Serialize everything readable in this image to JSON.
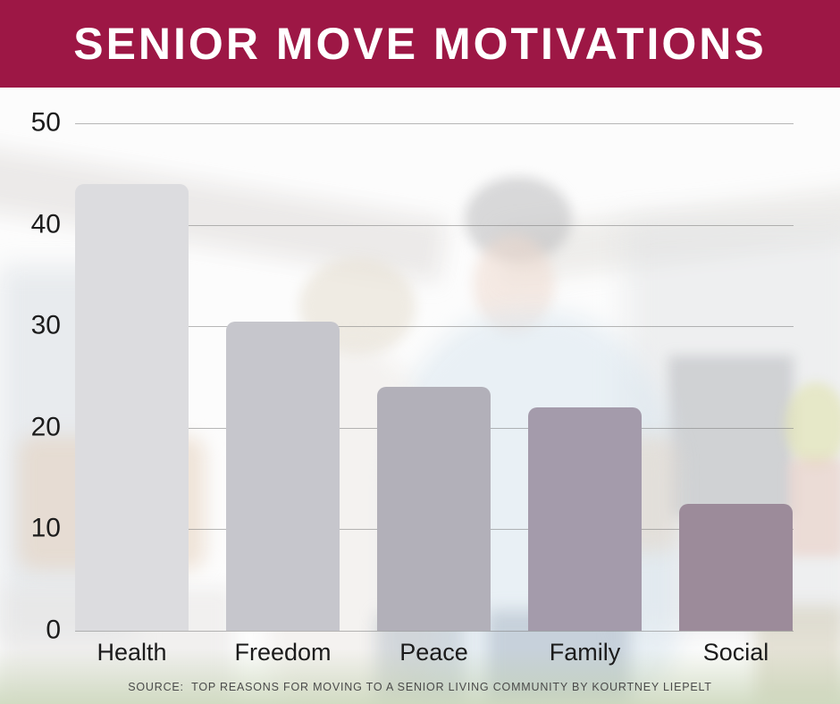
{
  "header": {
    "title": "SENIOR MOVE MOTIVATIONS",
    "background_color": "#9d1745",
    "text_color": "#ffffff"
  },
  "chart_data": {
    "type": "bar",
    "title": "SENIOR MOVE MOTIVATIONS",
    "categories": [
      "Health",
      "Freedom",
      "Peace",
      "Family",
      "Social"
    ],
    "values": [
      44,
      30.5,
      24,
      22,
      12.5
    ],
    "bar_colors": [
      "#dcdcdf",
      "#c6c6cc",
      "#b2b0b9",
      "#a49bab",
      "#9c8b9a"
    ],
    "xlabel": "",
    "ylabel": "",
    "ylim": [
      0,
      50
    ],
    "yticks": [
      50,
      40,
      30,
      20,
      10,
      0
    ],
    "grid": true,
    "gridline_color": "rgba(125,125,125,0.55)",
    "legend": false,
    "background": "faded photo of senior couple in front of house"
  },
  "source": {
    "text": "SOURCE:  TOP REASONS FOR MOVING TO A SENIOR LIVING COMMUNITY BY KOURTNEY LIEPELT"
  }
}
